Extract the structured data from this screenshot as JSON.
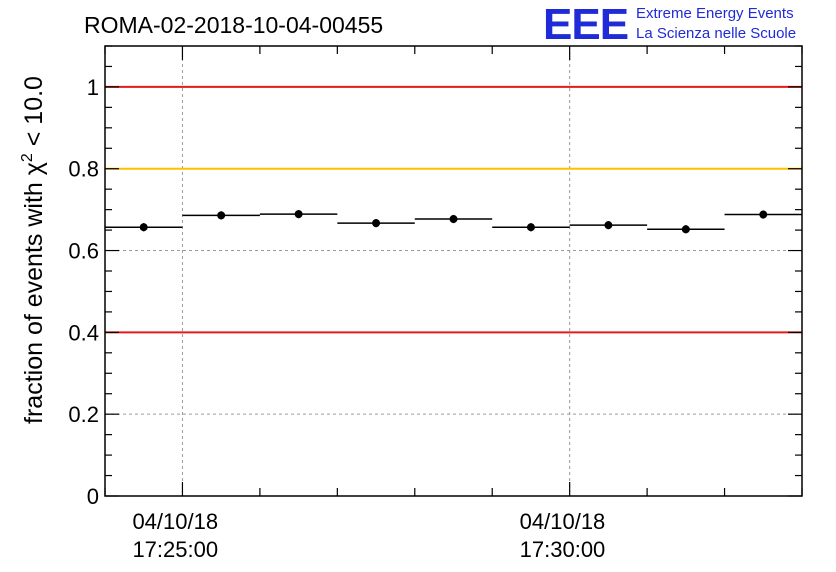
{
  "chart_data": {
    "type": "scatter",
    "title": "ROMA-02-2018-10-04-00455",
    "ylabel": "fraction of events with",
    "ylabel_symbol": "χ",
    "ylabel_sup": "2",
    "ylabel_tail": " < 10.0",
    "xlabel": "",
    "ylim": [
      0,
      1.1
    ],
    "y_ticks": [
      "0",
      "0.2",
      "0.4",
      "0.6",
      "0.8",
      "1"
    ],
    "y_tick_values": [
      0,
      0.2,
      0.4,
      0.6,
      0.8,
      1.0
    ],
    "x_range_minutes": [
      -1,
      8
    ],
    "x_tick_labels": [
      {
        "date": "04/10/18",
        "time": "17:25:00",
        "minute": 0
      },
      {
        "date": "04/10/18",
        "time": "17:30:00",
        "minute": 5
      }
    ],
    "points": [
      {
        "x_start": -1,
        "x_end": 0,
        "y": 0.657,
        "err": 0.01
      },
      {
        "x_start": 0,
        "x_end": 1,
        "y": 0.686,
        "err": 0.01
      },
      {
        "x_start": 1,
        "x_end": 2,
        "y": 0.689,
        "err": 0.01
      },
      {
        "x_start": 2,
        "x_end": 3,
        "y": 0.667,
        "err": 0.01
      },
      {
        "x_start": 3,
        "x_end": 4,
        "y": 0.677,
        "err": 0.01
      },
      {
        "x_start": 4,
        "x_end": 5,
        "y": 0.657,
        "err": 0.01
      },
      {
        "x_start": 5,
        "x_end": 6,
        "y": 0.662,
        "err": 0.01
      },
      {
        "x_start": 6,
        "x_end": 7,
        "y": 0.652,
        "err": 0.01
      },
      {
        "x_start": 7,
        "x_end": 8,
        "y": 0.688,
        "err": 0.01
      }
    ],
    "reference_lines": [
      {
        "y": 1.0,
        "color": "#e31a1c"
      },
      {
        "y": 0.8,
        "color": "#ffc000"
      },
      {
        "y": 0.4,
        "color": "#e31a1c"
      }
    ],
    "grid": true
  },
  "logo": {
    "mark": "EEE",
    "line1": "Extreme Energy Events",
    "line2": "La Scienza nelle Scuole",
    "color": "#1f2bd6"
  }
}
